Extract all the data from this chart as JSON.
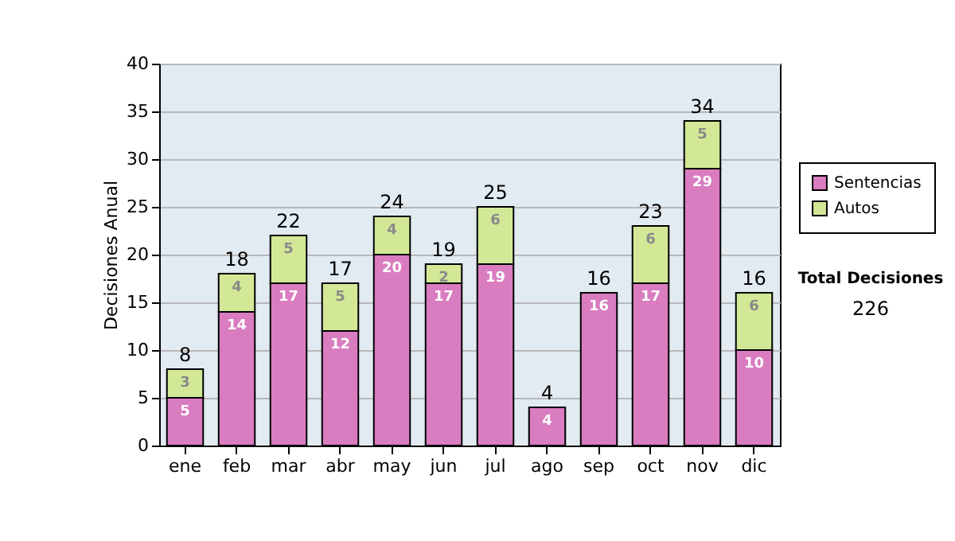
{
  "chart_data": {
    "type": "bar",
    "stacked": true,
    "ylabel": "Decisiones Anual",
    "categories": [
      "ene",
      "feb",
      "mar",
      "abr",
      "may",
      "jun",
      "jul",
      "ago",
      "sep",
      "oct",
      "nov",
      "dic"
    ],
    "series": [
      {
        "name": "Sentencias",
        "color": "#d97cc0",
        "values": [
          5,
          14,
          17,
          12,
          20,
          17,
          19,
          4,
          16,
          17,
          29,
          10
        ]
      },
      {
        "name": "Autos",
        "color": "#d3e897",
        "values": [
          3,
          4,
          5,
          5,
          4,
          2,
          6,
          null,
          null,
          6,
          5,
          6
        ]
      }
    ],
    "totals": [
      "8",
      "18",
      "22",
      "17",
      "24",
      "19",
      "25",
      "4",
      "16",
      "23",
      "34",
      "16"
    ],
    "data_labels": true,
    "ylim": [
      0,
      40
    ],
    "yticks": [
      0,
      5,
      10,
      15,
      20,
      25,
      30,
      35,
      40
    ],
    "grid": "y",
    "legend": "right",
    "annotations": [
      "Total Decisiones",
      "226"
    ]
  }
}
